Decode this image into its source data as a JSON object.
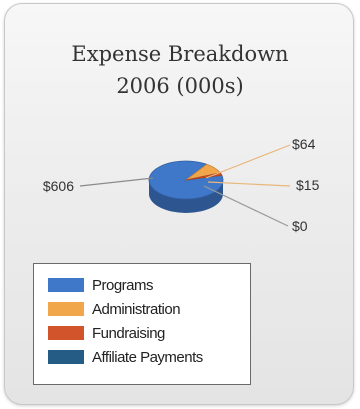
{
  "chart_data": {
    "type": "pie",
    "title": "Expense Breakdown",
    "subtitle": "2006 (000s)",
    "categories": [
      "Programs",
      "Administration",
      "Fundraising",
      "Affiliate Payments"
    ],
    "values": [
      606,
      64,
      15,
      0
    ],
    "value_labels": [
      "$606",
      "$64",
      "$15",
      "$0"
    ],
    "colors": [
      "#3f77c9",
      "#f2a64b",
      "#d2542a",
      "#255c86"
    ],
    "legend_position": "bottom-left",
    "style": "3d"
  }
}
